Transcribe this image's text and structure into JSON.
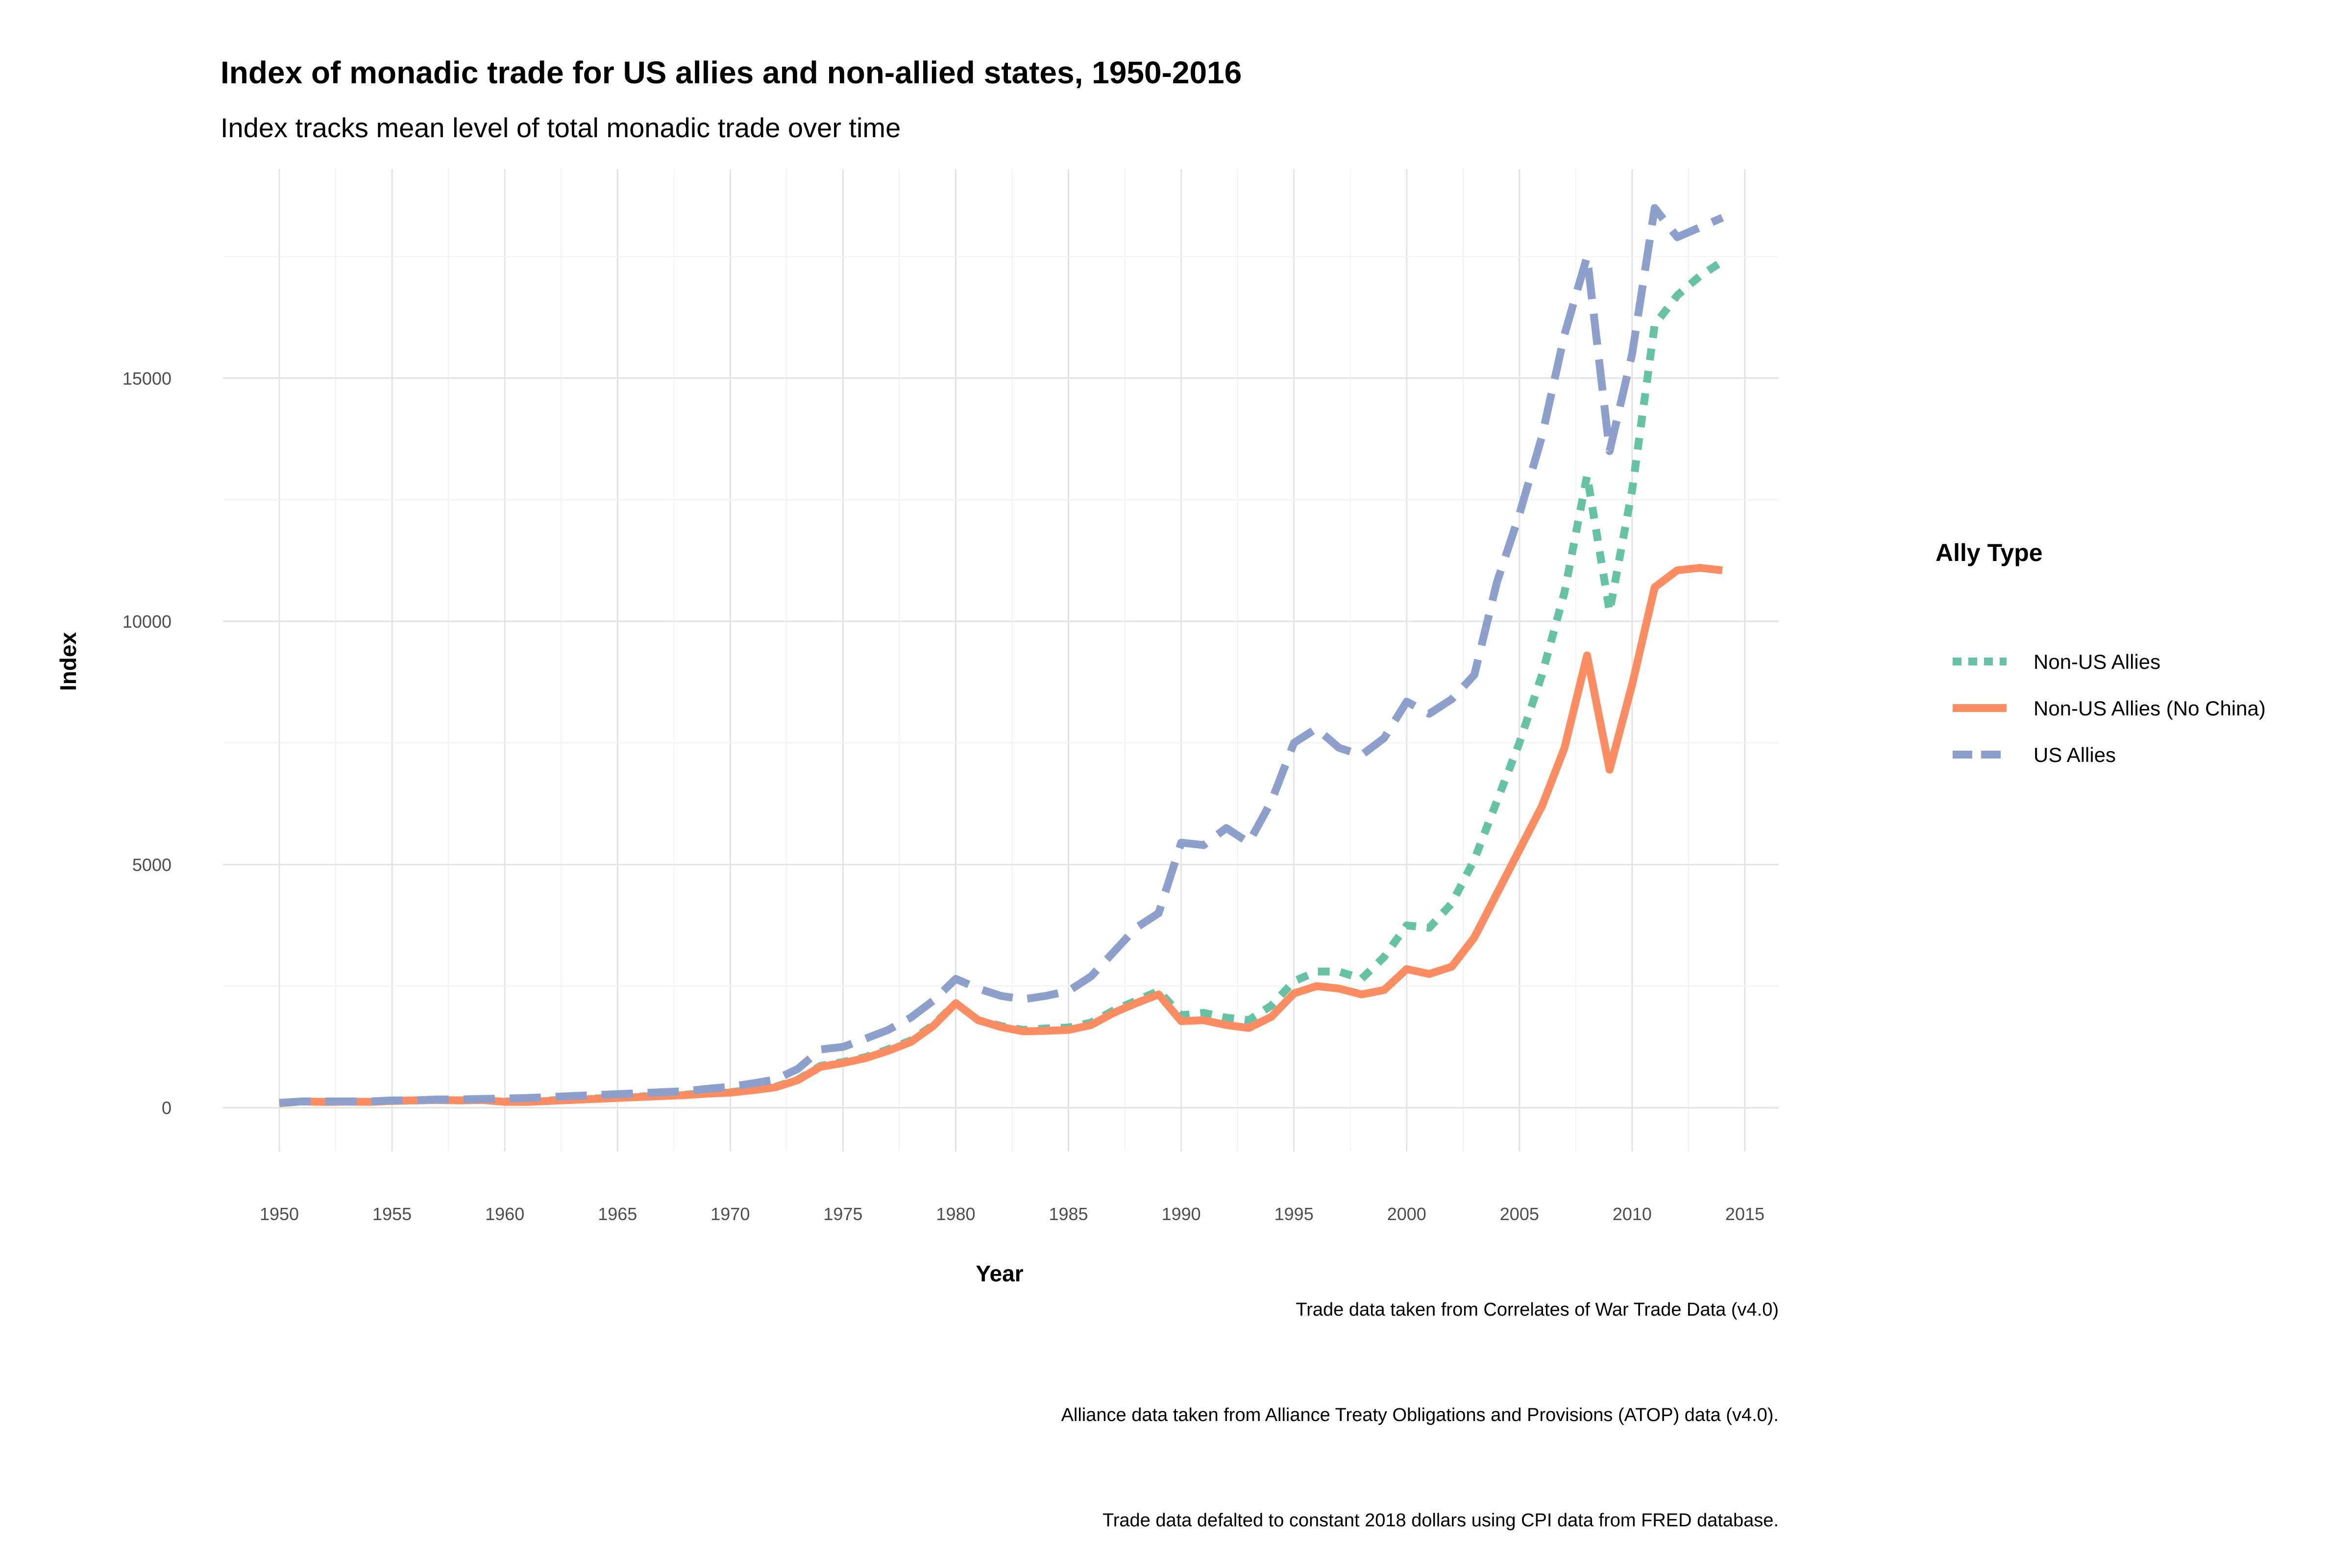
{
  "chart_data": {
    "type": "line",
    "title": "Index of monadic trade for US allies and non-allied states, 1950-2016",
    "subtitle": "Index tracks mean level of total monadic trade over time",
    "xlabel": "Year",
    "ylabel": "Index",
    "xlim": [
      1947.5,
      2016.5
    ],
    "ylim": [
      -900,
      19300
    ],
    "x_ticks": [
      1950,
      1955,
      1960,
      1965,
      1970,
      1975,
      1980,
      1985,
      1990,
      1995,
      2000,
      2005,
      2010,
      2015
    ],
    "y_ticks": [
      0,
      5000,
      10000,
      15000
    ],
    "grid": true,
    "legend": {
      "title": "Ally Type",
      "position": "right"
    },
    "x": [
      1950,
      1951,
      1952,
      1953,
      1954,
      1955,
      1956,
      1957,
      1958,
      1959,
      1960,
      1961,
      1962,
      1963,
      1964,
      1965,
      1966,
      1967,
      1968,
      1969,
      1970,
      1971,
      1972,
      1973,
      1974,
      1975,
      1976,
      1977,
      1978,
      1979,
      1980,
      1981,
      1982,
      1983,
      1984,
      1985,
      1986,
      1987,
      1988,
      1989,
      1990,
      1991,
      1992,
      1993,
      1994,
      1995,
      1996,
      1997,
      1998,
      1999,
      2000,
      2001,
      2002,
      2003,
      2004,
      2005,
      2006,
      2007,
      2008,
      2009,
      2010,
      2011,
      2012,
      2013,
      2014
    ],
    "series": [
      {
        "name": "Non-US Allies",
        "color": "#66c2a5",
        "dash": "dotted",
        "values": [
          100,
          130,
          120,
          125,
          120,
          140,
          150,
          160,
          150,
          160,
          130,
          130,
          150,
          170,
          190,
          210,
          230,
          250,
          270,
          300,
          320,
          370,
          430,
          580,
          860,
          940,
          1040,
          1200,
          1380,
          1700,
          2150,
          1800,
          1680,
          1600,
          1630,
          1650,
          1750,
          2000,
          2200,
          2400,
          1900,
          1950,
          1850,
          1800,
          2100,
          2600,
          2800,
          2800,
          2650,
          3100,
          3750,
          3700,
          4200,
          5100,
          6300,
          7500,
          8900,
          10600,
          13000,
          10200,
          12700,
          16100,
          16700,
          17100,
          17400
        ]
      },
      {
        "name": "Non-US Allies (No China)",
        "color": "#fc8d62",
        "dash": "solid",
        "values": [
          90,
          130,
          120,
          125,
          120,
          140,
          150,
          160,
          150,
          160,
          120,
          120,
          140,
          160,
          180,
          200,
          220,
          240,
          260,
          290,
          310,
          360,
          420,
          570,
          840,
          920,
          1020,
          1170,
          1350,
          1680,
          2150,
          1800,
          1660,
          1570,
          1580,
          1600,
          1700,
          1950,
          2150,
          2330,
          1780,
          1800,
          1700,
          1640,
          1870,
          2350,
          2500,
          2450,
          2330,
          2420,
          2850,
          2750,
          2900,
          3500,
          4400,
          5300,
          6200,
          7400,
          9300,
          6950,
          8700,
          10700,
          11050,
          11100,
          11050
        ]
      },
      {
        "name": "US Allies",
        "color": "#8da0cb",
        "dash": "dashed",
        "values": [
          100,
          130,
          130,
          130,
          130,
          150,
          150,
          170,
          170,
          180,
          190,
          200,
          220,
          240,
          260,
          280,
          300,
          320,
          340,
          390,
          430,
          500,
          580,
          800,
          1200,
          1250,
          1420,
          1600,
          1850,
          2200,
          2650,
          2450,
          2300,
          2230,
          2300,
          2400,
          2700,
          3200,
          3700,
          4000,
          5450,
          5400,
          5750,
          5450,
          6300,
          7500,
          7800,
          7400,
          7250,
          7600,
          8350,
          8100,
          8400,
          8900,
          10800,
          12200,
          13800,
          15900,
          17500,
          13500,
          15500,
          18500,
          17900,
          18100,
          18300
        ]
      }
    ],
    "captions": [
      "Trade data taken from Correlates of War Trade Data (v4.0)",
      "Alliance data taken from Alliance Treaty Obligations and Provisions (ATOP) data (v4.0).",
      "Trade data defalted to constant 2018 dollars using CPI data from FRED database."
    ]
  }
}
